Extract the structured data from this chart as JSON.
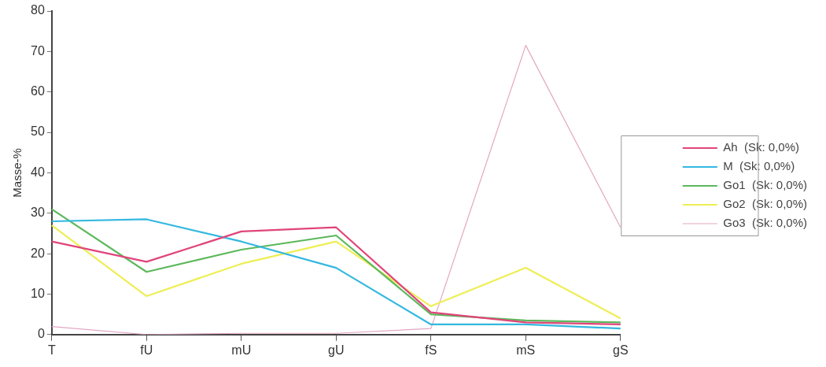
{
  "chart_data": {
    "type": "line",
    "ylabel": "Masse-%",
    "categories": [
      "T",
      "fU",
      "mU",
      "gU",
      "fS",
      "mS",
      "gS"
    ],
    "ylim": [
      0,
      80
    ],
    "yticks": [
      0,
      10,
      20,
      30,
      40,
      50,
      60,
      70,
      80
    ],
    "grid": false,
    "legend": "right",
    "marker": "none",
    "series": [
      {
        "name": "Ah  (Sk: 0,0%)",
        "color": "#e0457a",
        "values": [
          23,
          18,
          25.5,
          26.5,
          5.5,
          3,
          2.5
        ]
      },
      {
        "name": "M  (Sk: 0,0%)",
        "color": "#33b8e0",
        "values": [
          28,
          28.5,
          23,
          16.5,
          2.5,
          2.5,
          1.5
        ]
      },
      {
        "name": "Go1  (Sk: 0,0%)",
        "color": "#5cb85c",
        "values": [
          31,
          15.5,
          21,
          24.5,
          5,
          3.5,
          3
        ]
      },
      {
        "name": "Go2  (Sk: 0,0%)",
        "color": "#eeee55",
        "values": [
          27,
          9.5,
          17.5,
          23,
          7,
          16.5,
          4
        ]
      },
      {
        "name": "Go3  (Sk: 0,0%)",
        "color": "#e3a6c2",
        "values": [
          2,
          0,
          0.3,
          0.3,
          1.5,
          71.5,
          26.5
        ]
      }
    ]
  }
}
